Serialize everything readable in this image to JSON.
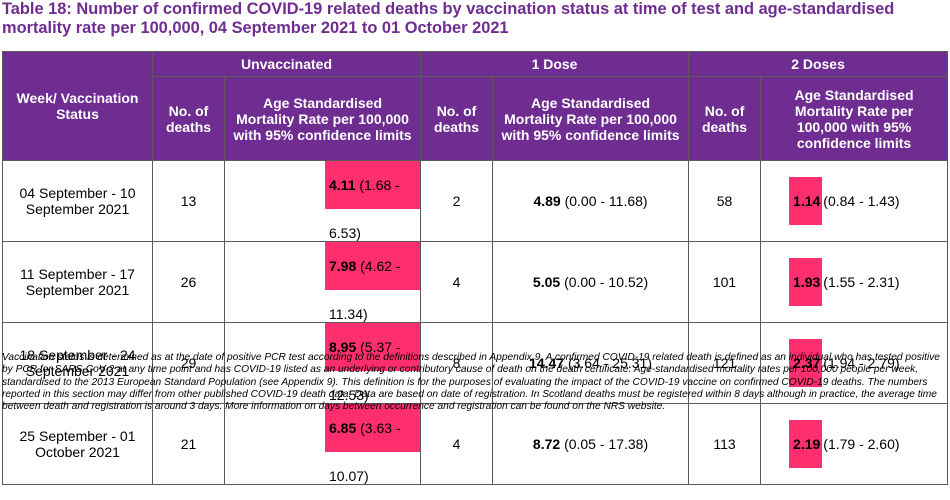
{
  "title": "Table 18: Number of confirmed COVID-19 related deaths by vaccination status at time of test and age-standardised mortality rate per 100,000, 04 September 2021 to 01 October 2021",
  "header": {
    "row_label": "Week/ Vaccination Status",
    "groups": [
      "Unvaccinated",
      "1 Dose",
      "2 Doses"
    ],
    "deaths_label": "No. of deaths",
    "rate_label": "Age Standardised Mortality Rate per 100,000 with 95% confidence limits"
  },
  "rows": [
    {
      "week": "04 September - 10 September 2021",
      "unvac": {
        "deaths": "13",
        "rate": "4.11",
        "ci": "(1.68 -  6.53)"
      },
      "dose1": {
        "deaths": "2",
        "rate": "4.89",
        "ci": "(0.00 - 11.68)"
      },
      "dose2": {
        "deaths": "58",
        "rate": "1.14",
        "ci": "(0.84 - 1.43)"
      }
    },
    {
      "week": "11 September - 17 September 2021",
      "unvac": {
        "deaths": "26",
        "rate": "7.98",
        "ci": "(4.62 - 11.34)"
      },
      "dose1": {
        "deaths": "4",
        "rate": "5.05",
        "ci": "(0.00 - 10.52)"
      },
      "dose2": {
        "deaths": "101",
        "rate": "1.93",
        "ci": "(1.55 - 2.31)"
      }
    },
    {
      "week": "18 September - 24 September 2021",
      "unvac": {
        "deaths": "29",
        "rate": "8.95",
        "ci": "(5.37 - 12.53)"
      },
      "dose1": {
        "deaths": "8",
        "rate": "14.47",
        "ci": "(3.64 - 25.31)"
      },
      "dose2": {
        "deaths": "121",
        "rate": "2.37",
        "ci": "(1.94 - 2.79)"
      }
    },
    {
      "week": "25 September - 01 October 2021",
      "unvac": {
        "deaths": "21",
        "rate": "6.85",
        "ci": "(3.63 - 10.07)"
      },
      "dose1": {
        "deaths": "4",
        "rate": "8.72",
        "ci": "(0.05 - 17.38)"
      },
      "dose2": {
        "deaths": "113",
        "rate": "2.19",
        "ci": "(1.79 - 2.60)"
      }
    }
  ],
  "highlight_color": "#ff2e6e",
  "header_color": "#6f2c91",
  "footnote": "Vaccination status is determined as at the date of positive PCR test according to the definitions described in Appendix 9. A confirmed COVID-19 related death is defined as an individual who has tested positive by PCR for SARS-CoV-2 at any time point and has COVID-19 listed as an underlying or contributory cause of death on the death certificate. Age-standardised mortality rates per 100,000 people per week, standardised to the 2013 European Standard Population (see Appendix 9). This definition is for the purposes of evaluating the impact of the COVID-19 vaccine on confirmed COVID-19 deaths. The numbers reported in this section may differ from other published COVID-19 death data. Data are based on date of registration. In Scotland deaths must be registered within 8 days although in practice, the average time between death and registration is around 3 days. More information on days between occurrence and registration can be found on the NRS website."
}
